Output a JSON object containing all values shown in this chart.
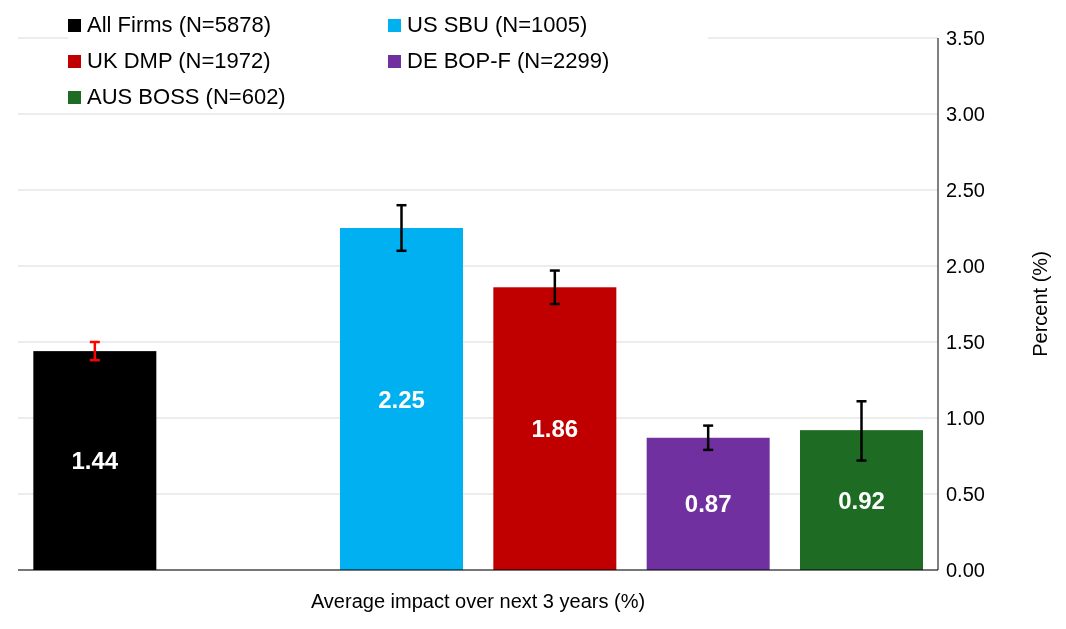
{
  "chart_data": {
    "type": "bar",
    "xlabel": "Average impact over next 3 years (%)",
    "ylabel": "Percent (%)",
    "categories": [
      null,
      null,
      null,
      null,
      null,
      null
    ],
    "stacked": true,
    "series": [
      {
        "name": "All Firms (N=5878)",
        "color": "#000000",
        "values": [
          1.44,
          null,
          null,
          null,
          null,
          null
        ],
        "errors": [
          [
            1.38,
            1.5
          ],
          null,
          null,
          null,
          null,
          null
        ]
      },
      {
        "name": "US SBU (N=1005)",
        "color": "#00b0f0",
        "values": [
          null,
          null,
          2.25,
          null,
          null,
          null
        ],
        "errors": [
          null,
          null,
          [
            2.1,
            2.4
          ],
          null,
          null,
          null
        ]
      },
      {
        "name": "UK DMP (N=1972)",
        "color": "#c00000",
        "values": [
          null,
          null,
          null,
          1.86,
          null,
          null
        ],
        "errors": [
          null,
          null,
          null,
          [
            1.75,
            1.97
          ],
          null,
          null
        ]
      },
      {
        "name": "DE BOP-F (N=2299)",
        "color": "#7030a0",
        "values": [
          null,
          null,
          null,
          null,
          0.87,
          null
        ],
        "errors": [
          null,
          null,
          null,
          null,
          [
            0.79,
            0.95
          ],
          null
        ]
      },
      {
        "name": "AUS BOSS (N=602)",
        "color": "#1e6b24",
        "values": [
          null,
          null,
          null,
          null,
          null,
          0.92
        ],
        "errors": [
          null,
          null,
          null,
          null,
          null,
          [
            0.72,
            1.11
          ]
        ]
      }
    ],
    "ylim": [
      0,
      3.5
    ],
    "yticks": [
      {
        "value": 0,
        "label": "0.00"
      },
      {
        "value": 0.5,
        "label": "0.50"
      },
      {
        "value": 1,
        "label": "1.00"
      },
      {
        "value": 1.5,
        "label": "1.50"
      },
      {
        "value": 2,
        "label": "2.00"
      },
      {
        "value": 2.5,
        "label": "2.50"
      },
      {
        "value": 3,
        "label": "3.00"
      },
      {
        "value": 3.5,
        "label": "3.50"
      }
    ],
    "grid": "y",
    "legend": "top left",
    "data_labels": true
  }
}
